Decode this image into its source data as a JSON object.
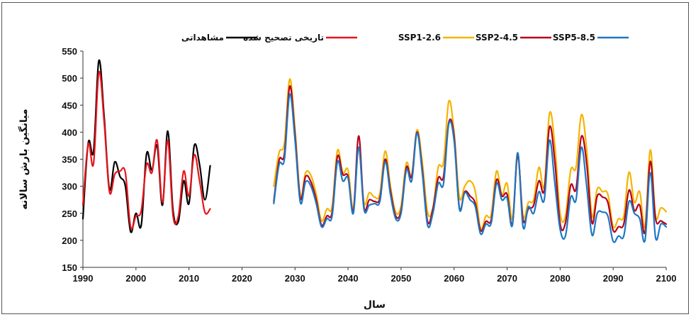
{
  "chart_data": {
    "type": "line",
    "xlabel": "سال",
    "ylabel": "میانگین بارش سالانه",
    "xlim": [
      1990,
      2100
    ],
    "ylim": [
      150,
      550
    ],
    "xticks": [
      1990,
      2000,
      2010,
      2020,
      2030,
      2040,
      2050,
      2060,
      2070,
      2080,
      2090,
      2100
    ],
    "yticks": [
      150,
      200,
      250,
      300,
      350,
      400,
      450,
      500,
      550
    ],
    "grid": false,
    "legend_position": "top",
    "series": [
      {
        "name": "مشاهداتی",
        "color": "#000000",
        "x": [
          1990,
          1991,
          1992,
          1993,
          1994,
          1995,
          1996,
          1997,
          1998,
          1999,
          2000,
          2001,
          2002,
          2003,
          2004,
          2005,
          2006,
          2007,
          2008,
          2009,
          2010,
          2011,
          2012,
          2013,
          2014
        ],
        "y": [
          240,
          380,
          365,
          532,
          430,
          295,
          345,
          318,
          300,
          216,
          250,
          228,
          360,
          330,
          375,
          265,
          402,
          255,
          235,
          310,
          268,
          375,
          340,
          275,
          338
        ]
      },
      {
        "name": "تاریخی تصحیح شده",
        "color": "#e8141c",
        "x": [
          1990,
          1991,
          1992,
          1993,
          1994,
          1995,
          1996,
          1997,
          1998,
          1999,
          2000,
          2001,
          2002,
          2003,
          2004,
          2005,
          2006,
          2007,
          2008,
          2009,
          2010,
          2011,
          2012,
          2013,
          2014
        ],
        "y": [
          265,
          378,
          342,
          510,
          420,
          290,
          322,
          328,
          325,
          225,
          245,
          255,
          340,
          325,
          385,
          270,
          385,
          245,
          245,
          328,
          282,
          358,
          310,
          252,
          258
        ]
      },
      {
        "name": "SSP1-2.6",
        "color": "#f5b400",
        "x": [
          2026,
          2027,
          2028,
          2029,
          2030,
          2031,
          2032,
          2033,
          2034,
          2035,
          2036,
          2037,
          2038,
          2039,
          2040,
          2041,
          2042,
          2043,
          2044,
          2045,
          2046,
          2047,
          2048,
          2049,
          2050,
          2051,
          2052,
          2053,
          2054,
          2055,
          2056,
          2057,
          2058,
          2059,
          2060,
          2061,
          2062,
          2063,
          2064,
          2065,
          2066,
          2067,
          2068,
          2069,
          2070,
          2071,
          2072,
          2073,
          2074,
          2075,
          2076,
          2077,
          2078,
          2079,
          2080,
          2081,
          2082,
          2083,
          2084,
          2085,
          2086,
          2087,
          2088,
          2089,
          2090,
          2091,
          2092,
          2093,
          2094,
          2095,
          2096,
          2097,
          2098,
          2099,
          2100
        ],
        "y": [
          300,
          362,
          380,
          498,
          405,
          282,
          325,
          320,
          285,
          236,
          258,
          262,
          366,
          325,
          330,
          258,
          370,
          270,
          288,
          280,
          286,
          365,
          300,
          252,
          264,
          343,
          320,
          404,
          345,
          252,
          260,
          335,
          345,
          457,
          400,
          280,
          300,
          310,
          290,
          222,
          245,
          248,
          328,
          285,
          305,
          240,
          355,
          245,
          270,
          275,
          335,
          300,
          435,
          375,
          250,
          245,
          330,
          335,
          432,
          368,
          245,
          295,
          290,
          285,
          225,
          240,
          245,
          326,
          270,
          290,
          225,
          367,
          245,
          260,
          253
        ]
      },
      {
        "name": "SSP2-4.5",
        "color": "#b3001b",
        "x": [
          2026,
          2027,
          2028,
          2029,
          2030,
          2031,
          2032,
          2033,
          2034,
          2035,
          2036,
          2037,
          2038,
          2039,
          2040,
          2041,
          2042,
          2043,
          2044,
          2045,
          2046,
          2047,
          2048,
          2049,
          2050,
          2051,
          2052,
          2053,
          2054,
          2055,
          2056,
          2057,
          2058,
          2059,
          2060,
          2061,
          2062,
          2063,
          2064,
          2065,
          2066,
          2067,
          2068,
          2069,
          2070,
          2071,
          2072,
          2073,
          2074,
          2075,
          2076,
          2077,
          2078,
          2079,
          2080,
          2081,
          2082,
          2083,
          2084,
          2085,
          2086,
          2087,
          2088,
          2089,
          2090,
          2091,
          2092,
          2093,
          2094,
          2095,
          2096,
          2097,
          2098,
          2099,
          2100
        ],
        "y": [
          272,
          348,
          360,
          485,
          395,
          278,
          318,
          308,
          275,
          228,
          245,
          252,
          355,
          322,
          318,
          255,
          393,
          262,
          275,
          272,
          278,
          350,
          292,
          245,
          255,
          335,
          318,
          400,
          332,
          235,
          258,
          315,
          318,
          418,
          393,
          260,
          290,
          282,
          268,
          218,
          235,
          238,
          312,
          282,
          285,
          230,
          357,
          238,
          258,
          265,
          310,
          292,
          410,
          345,
          230,
          232,
          302,
          295,
          392,
          342,
          232,
          282,
          280,
          270,
          218,
          225,
          230,
          293,
          255,
          265,
          215,
          346,
          240,
          236,
          230
        ]
      },
      {
        "name": "SSP5-8.5",
        "color": "#1f77c4",
        "x": [
          2026,
          2027,
          2028,
          2029,
          2030,
          2031,
          2032,
          2033,
          2034,
          2035,
          2036,
          2037,
          2038,
          2039,
          2040,
          2041,
          2042,
          2043,
          2044,
          2045,
          2046,
          2047,
          2048,
          2049,
          2050,
          2051,
          2052,
          2053,
          2054,
          2055,
          2056,
          2057,
          2058,
          2059,
          2060,
          2061,
          2062,
          2063,
          2064,
          2065,
          2066,
          2067,
          2068,
          2069,
          2070,
          2071,
          2072,
          2073,
          2074,
          2075,
          2076,
          2077,
          2078,
          2079,
          2080,
          2081,
          2082,
          2083,
          2084,
          2085,
          2086,
          2087,
          2088,
          2089,
          2090,
          2091,
          2092,
          2093,
          2094,
          2095,
          2096,
          2097,
          2098,
          2099,
          2100
        ],
        "y": [
          268,
          340,
          350,
          470,
          385,
          270,
          308,
          300,
          268,
          225,
          240,
          245,
          345,
          310,
          315,
          250,
          372,
          258,
          265,
          268,
          272,
          345,
          285,
          240,
          250,
          330,
          310,
          398,
          325,
          228,
          250,
          305,
          305,
          415,
          385,
          258,
          288,
          275,
          262,
          212,
          230,
          232,
          305,
          275,
          278,
          228,
          362,
          225,
          262,
          250,
          290,
          275,
          385,
          305,
          220,
          208,
          280,
          275,
          372,
          300,
          210,
          250,
          252,
          245,
          198,
          208,
          208,
          272,
          250,
          240,
          200,
          325,
          205,
          230,
          225
        ]
      }
    ]
  }
}
